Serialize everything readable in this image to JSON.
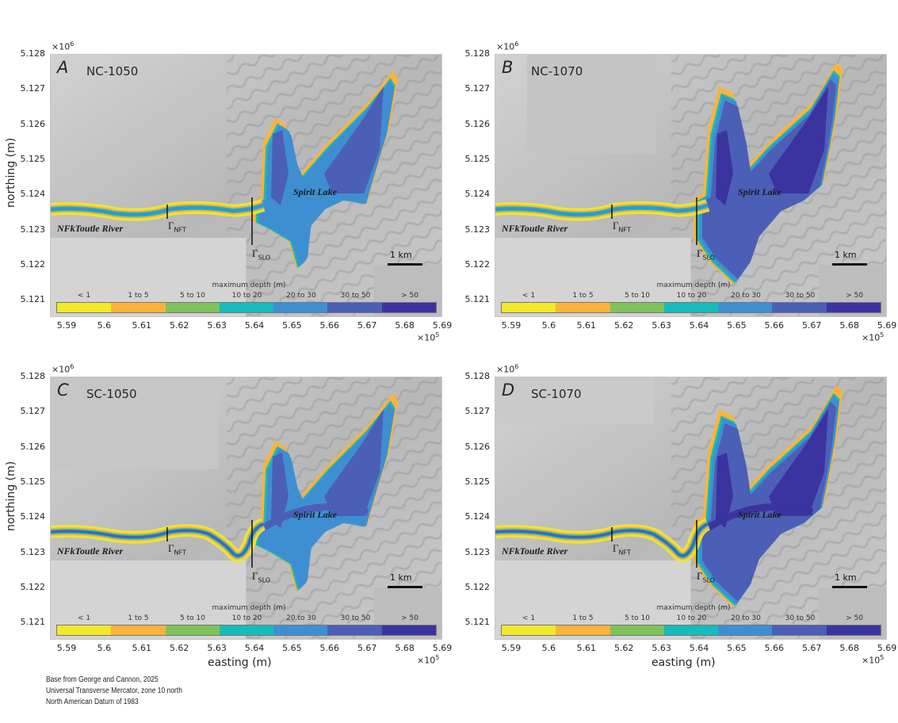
{
  "figure": {
    "credits": [
      "Base from George and Cannon, 2025",
      "Universal Transverse Mercator, zone 10 north",
      "North American Datum of 1983"
    ],
    "xlabel": "easting (m)",
    "ylabel": "northing (m)",
    "x_exponent": "×10",
    "x_exponent_power": "5",
    "y_exponent": "×10",
    "y_exponent_power": "6",
    "scale_bar": "1 km",
    "river_label": "NFkToutle River",
    "lake_label": "Spirit Lake",
    "gamma_symbol": "Γ",
    "gamma_nft": "NFT",
    "gamma_slo": "SLO",
    "yticks": [
      "5.128",
      "5.127",
      "5.126",
      "5.125",
      "5.124",
      "5.123",
      "5.122",
      "5.121"
    ],
    "xticks": [
      "5.59",
      "5.6",
      "5.61",
      "5.62",
      "5.63",
      "5.64",
      "5.65",
      "5.66",
      "5.67",
      "5.68",
      "5.69"
    ],
    "colorbar": {
      "title": "maximum depth (m)",
      "labels": [
        "< 1",
        "1 to 5",
        "5 to 10",
        "10 to 20",
        "20 to 30",
        "30 to 50",
        "> 50"
      ],
      "colors": [
        "#f2e92a",
        "#fbb33b",
        "#7ec35b",
        "#15bcbc",
        "#3e8fd2",
        "#4b5fb6",
        "#3b33a0"
      ]
    },
    "panels": [
      {
        "letter": "A",
        "scenario": "NC-1050"
      },
      {
        "letter": "B",
        "scenario": "NC-1070"
      },
      {
        "letter": "C",
        "scenario": "SC-1050"
      },
      {
        "letter": "D",
        "scenario": "SC-1070"
      }
    ]
  },
  "chart_data": [
    {
      "type": "heatmap",
      "title": "A NC-1050",
      "xlabel": "easting (m)",
      "ylabel": "northing (m)",
      "xlim": [
        558600,
        569600
      ],
      "ylim": [
        5120600,
        5128000
      ],
      "legend": "maximum depth (m)",
      "legend_bins": [
        "< 1",
        "1 to 5",
        "5 to 10",
        "10 to 20",
        "20 to 30",
        "30 to 50",
        "> 50"
      ],
      "annotations": [
        "NFkToutle River",
        "Spirit Lake",
        "Γ NFT",
        "Γ SLO",
        "1 km"
      ]
    },
    {
      "type": "heatmap",
      "title": "B NC-1070",
      "xlabel": "easting (m)",
      "ylabel": "northing (m)",
      "xlim": [
        558600,
        569600
      ],
      "ylim": [
        5120600,
        5128000
      ],
      "legend": "maximum depth (m)",
      "legend_bins": [
        "< 1",
        "1 to 5",
        "5 to 10",
        "10 to 20",
        "20 to 30",
        "30 to 50",
        "> 50"
      ],
      "annotations": [
        "NFkToutle River",
        "Spirit Lake",
        "Γ NFT",
        "Γ SLO",
        "1 km"
      ]
    },
    {
      "type": "heatmap",
      "title": "C SC-1050",
      "xlabel": "easting (m)",
      "ylabel": "northing (m)",
      "xlim": [
        558600,
        569600
      ],
      "ylim": [
        5120600,
        5128000
      ],
      "legend": "maximum depth (m)",
      "legend_bins": [
        "< 1",
        "1 to 5",
        "5 to 10",
        "10 to 20",
        "20 to 30",
        "30 to 50",
        "> 50"
      ],
      "annotations": [
        "NFkToutle River",
        "Spirit Lake",
        "Γ NFT",
        "Γ SLO",
        "1 km"
      ]
    },
    {
      "type": "heatmap",
      "title": "D SC-1070",
      "xlabel": "easting (m)",
      "ylabel": "northing (m)",
      "xlim": [
        558600,
        569600
      ],
      "ylim": [
        5120600,
        5128000
      ],
      "legend": "maximum depth (m)",
      "legend_bins": [
        "< 1",
        "1 to 5",
        "5 to 10",
        "10 to 20",
        "20 to 30",
        "30 to 50",
        "> 50"
      ],
      "annotations": [
        "NFkToutle River",
        "Spirit Lake",
        "Γ NFT",
        "Γ SLO",
        "1 km"
      ]
    }
  ]
}
